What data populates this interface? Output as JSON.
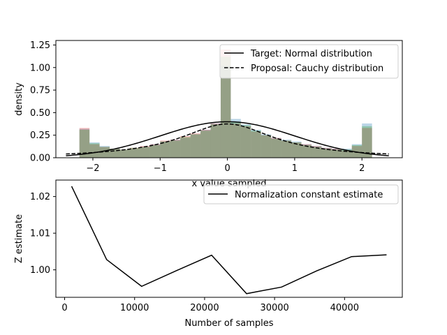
{
  "chart_data": [
    {
      "type": "bar",
      "xlabel": "x value sampled",
      "ylabel": "density",
      "xlim": [
        -2.55,
        2.6
      ],
      "ylim": [
        0,
        1.3
      ],
      "xticks": [
        -2,
        -1,
        0,
        1,
        2
      ],
      "yticks": [
        0.0,
        0.25,
        0.5,
        0.75,
        1.0,
        1.25
      ],
      "xtick_labels": [
        "−2",
        "−1",
        "0",
        "1",
        "2"
      ],
      "ytick_labels": [
        "0.00",
        "0.25",
        "0.50",
        "0.75",
        "1.00",
        "1.25"
      ],
      "legend_position": "top-right",
      "series": [
        {
          "name": "Target: Normal distribution",
          "kind": "line",
          "style": "solid",
          "color": "#000000",
          "distribution": "normal",
          "mu": 0,
          "sigma": 1,
          "x_range": [
            -2.4,
            2.4
          ]
        },
        {
          "name": "Proposal: Cauchy distribution",
          "kind": "line",
          "style": "dashed",
          "color": "#000000",
          "distribution": "cauchy",
          "x0": 0,
          "gamma": 0.85,
          "x_range": [
            -2.4,
            2.4
          ]
        }
      ],
      "histograms": {
        "bin_edges": [
          -2.2,
          -2.05,
          -1.9,
          -1.75,
          -1.6,
          -1.45,
          -1.3,
          -1.15,
          -1.0,
          -0.85,
          -0.7,
          -0.55,
          -0.4,
          -0.25,
          -0.1,
          0.05,
          0.2,
          0.35,
          0.5,
          0.65,
          0.8,
          0.95,
          1.1,
          1.25,
          1.4,
          1.55,
          1.7,
          1.85,
          2.0,
          2.15
        ],
        "layers": [
          {
            "color": "#1f77b4",
            "values": [
              0.32,
              0.17,
              0.13,
              0.1,
              0.09,
              0.1,
              0.12,
              0.15,
              0.18,
              0.2,
              0.22,
              0.26,
              0.31,
              0.38,
              1.02,
              0.43,
              0.37,
              0.31,
              0.26,
              0.22,
              0.2,
              0.18,
              0.15,
              0.13,
              0.11,
              0.1,
              0.1,
              0.15,
              0.38
            ]
          },
          {
            "color": "#d62728",
            "values": [
              0.33,
              0.15,
              0.12,
              0.1,
              0.09,
              0.11,
              0.13,
              0.15,
              0.19,
              0.2,
              0.24,
              0.27,
              0.31,
              0.38,
              1.2,
              0.38,
              0.35,
              0.29,
              0.25,
              0.22,
              0.19,
              0.17,
              0.15,
              0.13,
              0.11,
              0.1,
              0.08,
              0.13,
              0.33
            ]
          },
          {
            "color": "#2ca02c",
            "values": [
              0.31,
              0.16,
              0.12,
              0.1,
              0.09,
              0.11,
              0.12,
              0.14,
              0.18,
              0.19,
              0.23,
              0.26,
              0.3,
              0.37,
              1.12,
              0.4,
              0.36,
              0.3,
              0.25,
              0.21,
              0.19,
              0.17,
              0.14,
              0.12,
              0.1,
              0.09,
              0.09,
              0.14,
              0.35
            ]
          }
        ]
      }
    },
    {
      "type": "line",
      "xlabel": "Number of samples",
      "ylabel": "Z estimate",
      "xlim": [
        -1250,
        48250
      ],
      "ylim": [
        0.9925,
        1.0245
      ],
      "xticks": [
        0,
        10000,
        20000,
        30000,
        40000
      ],
      "yticks": [
        1.0,
        1.01,
        1.02
      ],
      "xtick_labels": [
        "0",
        "10000",
        "20000",
        "30000",
        "40000"
      ],
      "ytick_labels": [
        "1.00",
        "1.01",
        "1.02"
      ],
      "legend_position": "top-right",
      "series": [
        {
          "name": "Normalization constant estimate",
          "color": "#000000",
          "x": [
            1000,
            6000,
            11000,
            16000,
            21000,
            26000,
            31000,
            36000,
            41000,
            46000
          ],
          "y": [
            1.0228,
            1.0028,
            0.9955,
            0.9998,
            1.004,
            0.9935,
            0.9953,
            0.9997,
            1.0036,
            1.0041
          ]
        }
      ]
    }
  ]
}
